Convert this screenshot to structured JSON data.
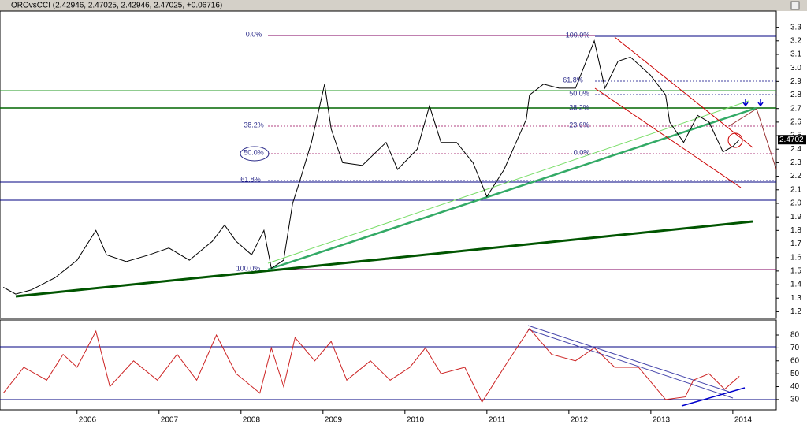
{
  "chart_data": [
    {
      "type": "line",
      "title": "OROvsCCI (2.42946, 2.47025, 2.42946, 2.47025, +0.06716)",
      "x": [
        2005.1,
        2005.25,
        2005.44,
        2005.73,
        2006.0,
        2006.23,
        2006.36,
        2006.6,
        2006.88,
        2007.12,
        2007.37,
        2007.65,
        2007.8,
        2007.94,
        2008.13,
        2008.28,
        2008.37,
        2008.52,
        2008.63,
        2008.71,
        2008.86,
        2009.02,
        2009.1,
        2009.24,
        2009.48,
        2009.77,
        2009.91,
        2010.15,
        2010.3,
        2010.44,
        2010.63,
        2010.83,
        2011.0,
        2011.21,
        2011.48,
        2011.52,
        2011.69,
        2011.88,
        2012.08,
        2012.31,
        2012.44,
        2012.6,
        2012.75,
        2012.99,
        2013.18,
        2013.23,
        2013.4,
        2013.57,
        2013.71,
        2013.88,
        2014.0,
        2014.08
      ],
      "values": [
        1.38,
        1.33,
        1.36,
        1.45,
        1.58,
        1.8,
        1.62,
        1.57,
        1.62,
        1.67,
        1.58,
        1.72,
        1.84,
        1.72,
        1.62,
        1.8,
        1.52,
        1.58,
        2.0,
        2.15,
        2.45,
        2.88,
        2.55,
        2.3,
        2.28,
        2.45,
        2.25,
        2.4,
        2.72,
        2.45,
        2.45,
        2.3,
        2.05,
        2.25,
        2.62,
        2.8,
        2.88,
        2.85,
        2.85,
        3.2,
        2.85,
        3.05,
        3.08,
        2.95,
        2.8,
        2.6,
        2.45,
        2.65,
        2.6,
        2.38,
        2.42,
        2.47
      ],
      "color": "#000000",
      "xlim": [
        2005.06,
        2014.53
      ],
      "ylim": [
        1.15,
        3.42
      ],
      "yticks": [
        1.2,
        1.3,
        1.4,
        1.5,
        1.6,
        1.7,
        1.8,
        1.9,
        {
          "value": 2,
          "label": "2.0"
        },
        2.1,
        2.2,
        2.3,
        2.4,
        2.5,
        2.6,
        2.7,
        2.8,
        2.9,
        {
          "value": 3,
          "label": "3.0"
        },
        3.1,
        3.2,
        3.3
      ],
      "last_value_label": "2.4702",
      "annotations": [
        "0.0%",
        "38.2%",
        "50.0%",
        "61.8%",
        "100.0%",
        "100.0%",
        "61.8%",
        "50.0%",
        "38.2%",
        "23.6%",
        "0.0%"
      ]
    },
    {
      "type": "line",
      "x": [
        2005.1,
        2005.35,
        2005.63,
        2005.83,
        2006.0,
        2006.23,
        2006.4,
        2006.69,
        2006.98,
        2007.22,
        2007.46,
        2007.7,
        2007.94,
        2008.23,
        2008.37,
        2008.52,
        2008.66,
        2008.9,
        2009.1,
        2009.29,
        2009.58,
        2009.82,
        2010.06,
        2010.25,
        2010.44,
        2010.73,
        2010.94,
        2011.21,
        2011.52,
        2011.79,
        2012.08,
        2012.31,
        2012.56,
        2012.85,
        2013.18,
        2013.42,
        2013.52,
        2013.71,
        2013.9,
        2014.08
      ],
      "values": [
        35,
        55,
        45,
        65,
        55,
        83,
        40,
        60,
        45,
        65,
        45,
        80,
        50,
        35,
        70,
        40,
        78,
        60,
        75,
        45,
        60,
        45,
        55,
        70,
        50,
        55,
        28,
        55,
        85,
        65,
        60,
        70,
        55,
        55,
        30,
        32,
        45,
        50,
        38,
        48
      ],
      "color": "#cc2222",
      "xlim": [
        2005.06,
        2014.53
      ],
      "ylim": [
        22,
        91
      ],
      "yticks": [
        30,
        40,
        50,
        60,
        70,
        80
      ],
      "xticks": [
        2006,
        2007,
        2008,
        2009,
        2010,
        2011,
        2012,
        2013,
        2014
      ]
    }
  ]
}
